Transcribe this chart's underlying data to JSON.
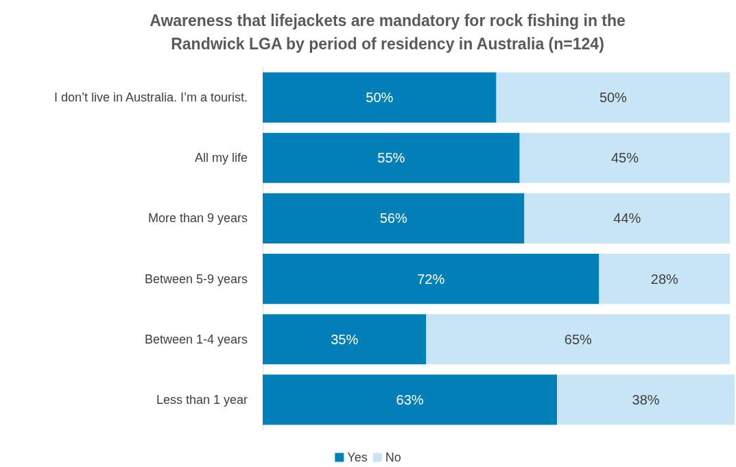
{
  "chart_data": {
    "type": "bar",
    "orientation": "horizontal",
    "stacked": true,
    "title": "Awareness that lifejackets are mandatory for rock fishing in the\nRandwick LGA by period of residency in Australia (n=124)",
    "categories": [
      "I don’t live in Australia. I’m a tourist.",
      "All my life",
      "More than 9 years",
      "Between 5-9 years",
      "Between 1-4 years",
      "Less than 1 year"
    ],
    "series": [
      {
        "name": "Yes",
        "color": "#0080b6",
        "values": [
          50,
          55,
          56,
          72,
          35,
          63
        ],
        "value_labels": [
          "50%",
          "55%",
          "56%",
          "72%",
          "35%",
          "63%"
        ]
      },
      {
        "name": "No",
        "color": "#c8e5f6",
        "values": [
          50,
          45,
          44,
          28,
          65,
          38
        ],
        "value_labels": [
          "50%",
          "45%",
          "44%",
          "28%",
          "65%",
          "38%"
        ]
      }
    ],
    "legend": "bottom"
  }
}
